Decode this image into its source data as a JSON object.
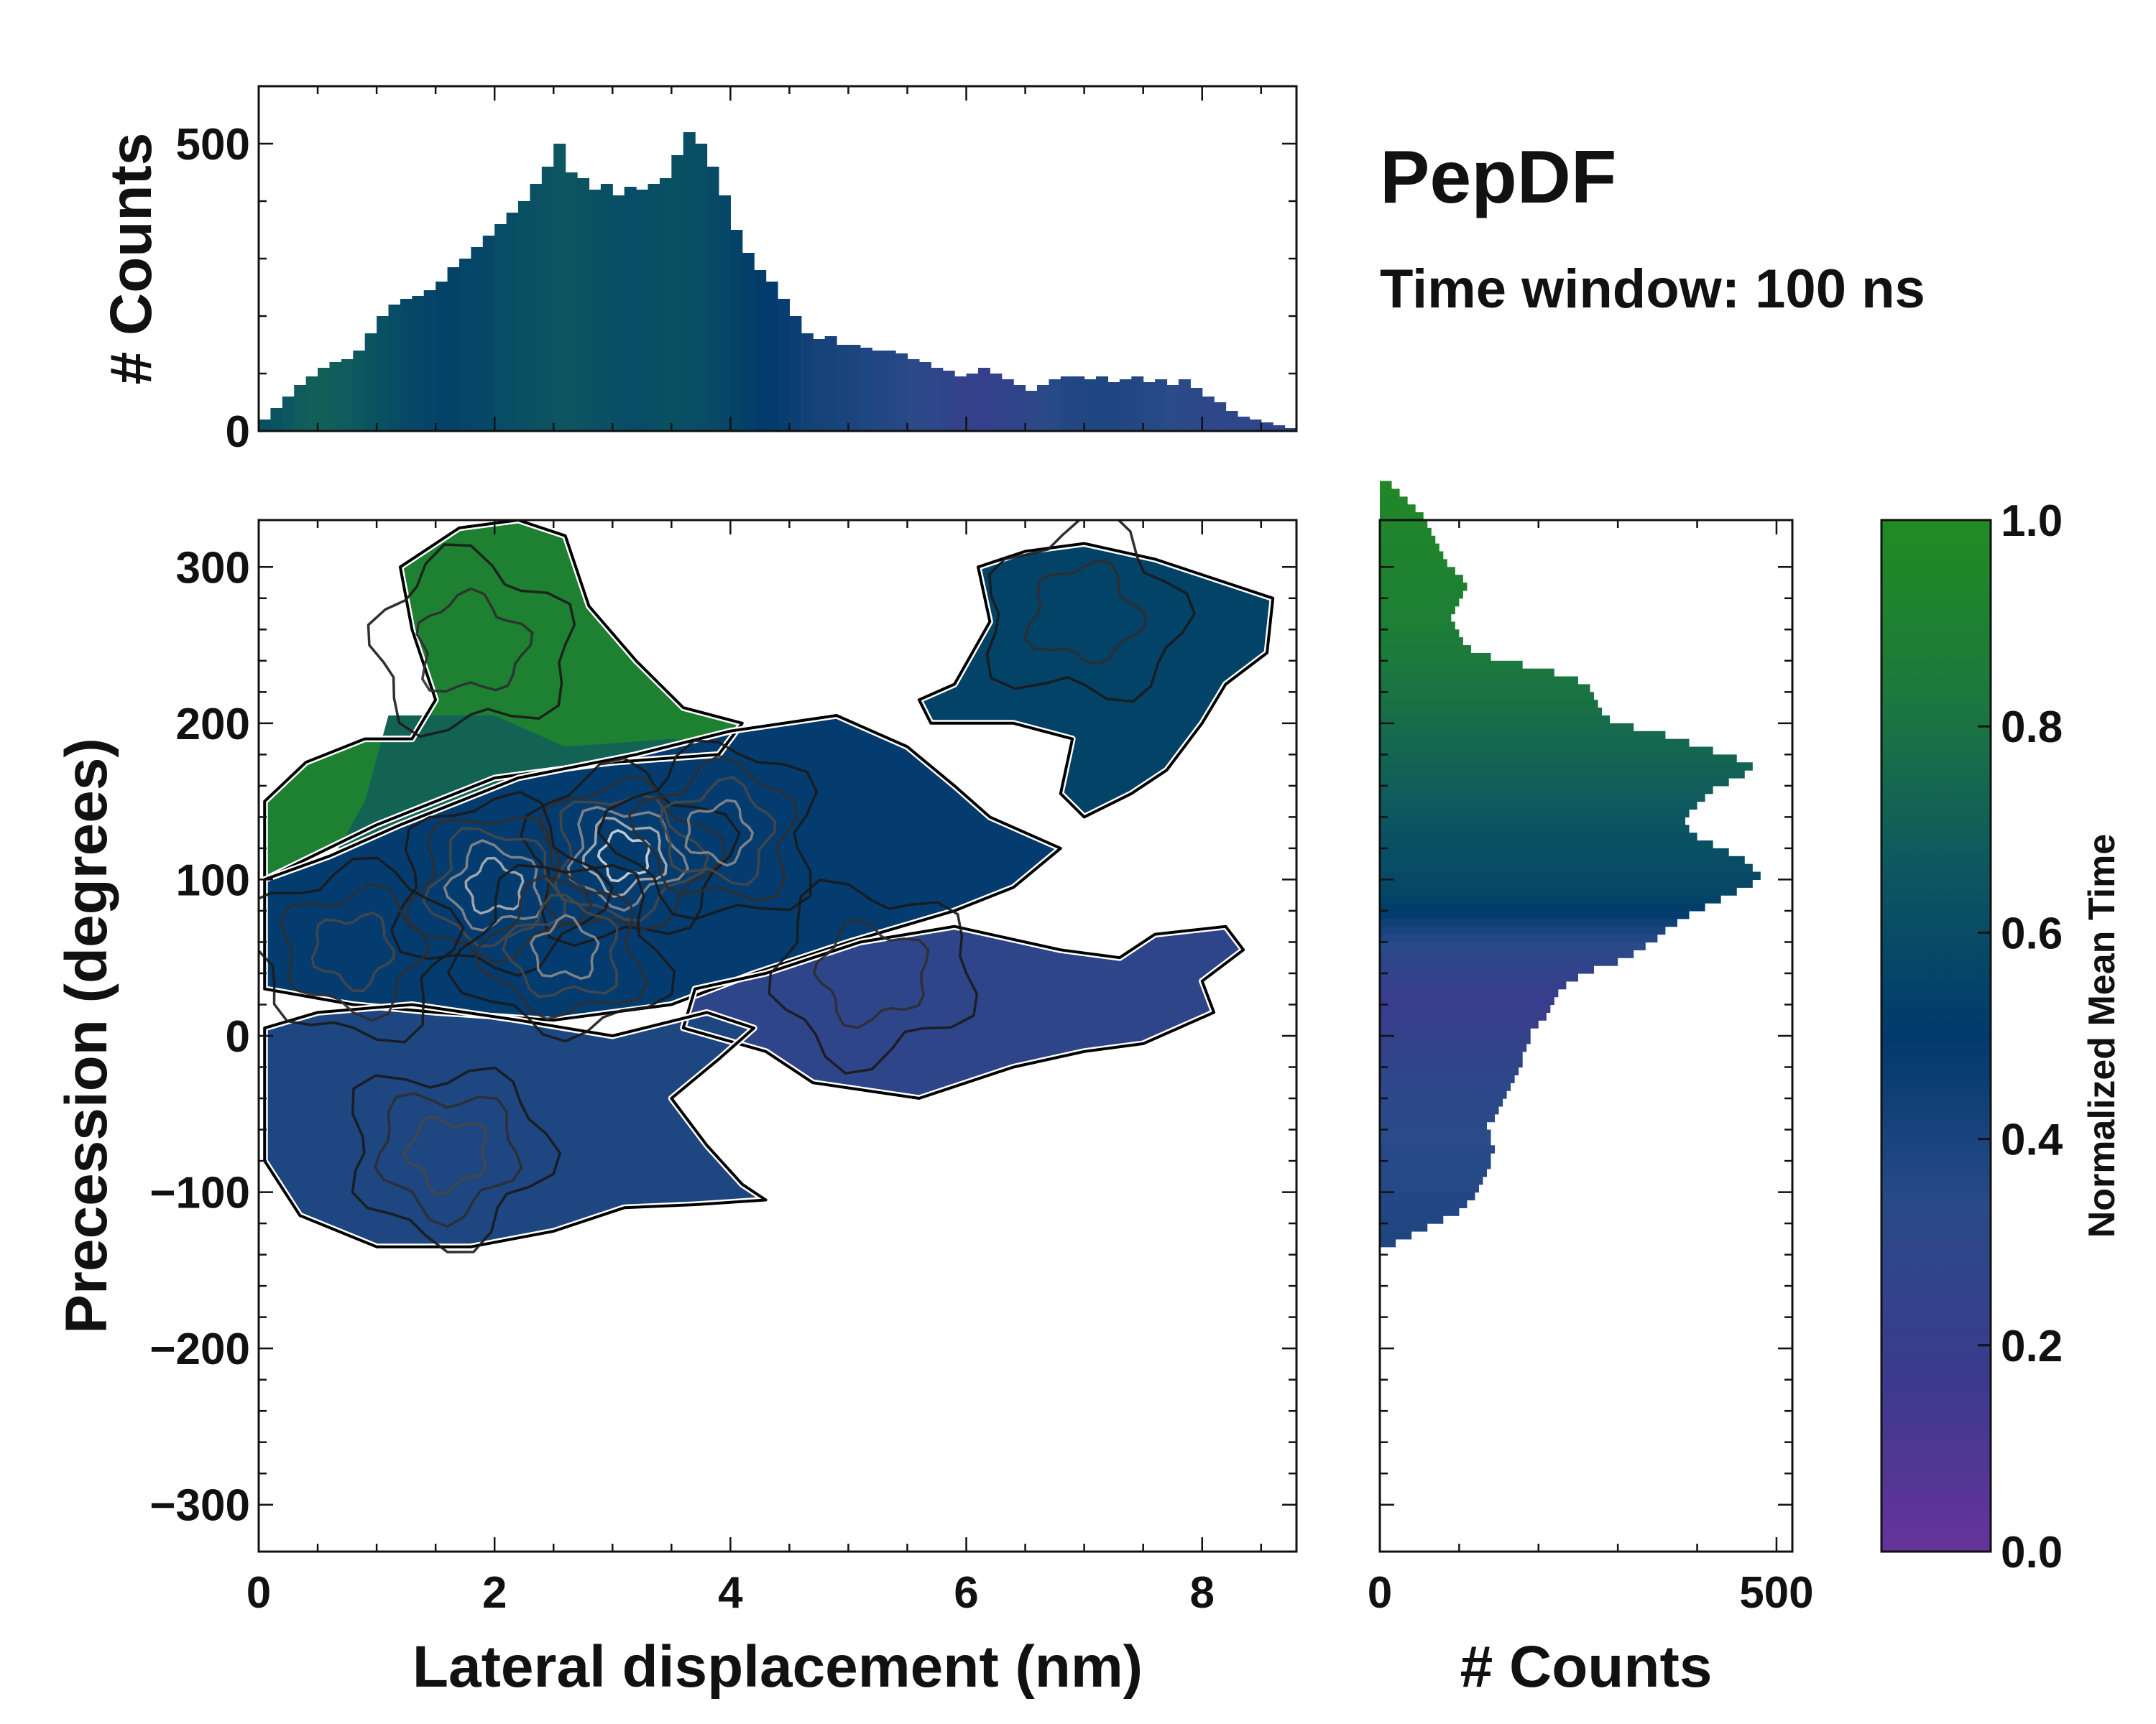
{
  "title": "PepDF",
  "subtitle": "Time window: 100 ns",
  "colors": {
    "stops": [
      "#66339a",
      "#3b3a8e",
      "#2a4a88",
      "#003a6c",
      "#0e5860",
      "#1c7a3c",
      "#228b22"
    ],
    "axis": "#111111",
    "outline": "#000000"
  },
  "chart_data": [
    {
      "id": "top-hist",
      "type": "bar",
      "title": "",
      "xlabel": "",
      "ylabel": "# Counts",
      "xlim": [
        0,
        8.8
      ],
      "ylim": [
        0,
        600
      ],
      "yticks": [
        0,
        500
      ],
      "bin_centers_start": 0.05,
      "bin_width": 0.1,
      "values": [
        20,
        40,
        60,
        80,
        95,
        110,
        120,
        125,
        140,
        170,
        200,
        220,
        230,
        235,
        245,
        260,
        285,
        300,
        320,
        340,
        360,
        380,
        400,
        430,
        460,
        500,
        450,
        440,
        420,
        430,
        410,
        425,
        420,
        430,
        440,
        480,
        520,
        500,
        460,
        410,
        350,
        310,
        280,
        260,
        230,
        200,
        170,
        160,
        165,
        150,
        150,
        145,
        140,
        140,
        135,
        125,
        120,
        110,
        105,
        95,
        100,
        110,
        100,
        90,
        80,
        70,
        80,
        90,
        95,
        95,
        90,
        95,
        85,
        90,
        95,
        85,
        90,
        80,
        90,
        75,
        60,
        50,
        35,
        25,
        20,
        15,
        10,
        5
      ],
      "time_color": [
        0.62,
        0.64,
        0.66,
        0.68,
        0.7,
        0.7,
        0.69,
        0.68,
        0.66,
        0.64,
        0.62,
        0.6,
        0.58,
        0.57,
        0.56,
        0.55,
        0.55,
        0.56,
        0.57,
        0.58,
        0.6,
        0.61,
        0.62,
        0.63,
        0.64,
        0.65,
        0.65,
        0.64,
        0.63,
        0.62,
        0.61,
        0.6,
        0.6,
        0.61,
        0.62,
        0.62,
        0.61,
        0.6,
        0.59,
        0.57,
        0.55,
        0.53,
        0.51,
        0.49,
        0.47,
        0.45,
        0.43,
        0.42,
        0.41,
        0.4,
        0.39,
        0.38,
        0.37,
        0.36,
        0.35,
        0.33,
        0.31,
        0.29,
        0.27,
        0.25,
        0.24,
        0.23,
        0.24,
        0.26,
        0.28,
        0.3,
        0.32,
        0.34,
        0.36,
        0.37,
        0.38,
        0.38,
        0.38,
        0.37,
        0.36,
        0.35,
        0.34,
        0.33,
        0.32,
        0.31,
        0.3,
        0.3,
        0.29,
        0.29,
        0.28,
        0.28,
        0.27,
        0.27
      ]
    },
    {
      "id": "main-2d-hist",
      "type": "heatmap",
      "title": "",
      "xlabel": "Lateral displacement (nm)",
      "ylabel": "Precession (degrees)",
      "xlim": [
        0,
        8.8
      ],
      "ylim": [
        -330,
        330
      ],
      "xticks": [
        0,
        2,
        4,
        6,
        8
      ],
      "yticks": [
        300,
        200,
        100,
        0,
        -100,
        -200,
        -300
      ],
      "ytick_labels": [
        "300",
        "200",
        "100",
        "0",
        "−100",
        "−200",
        "−300"
      ],
      "region_values": [
        0.9,
        0.55,
        0.72,
        0.48,
        0.28,
        0.38
      ],
      "regions": [
        {
          "name": "upper-left-green",
          "mean_time": 0.9
        },
        {
          "name": "upper-right-blue",
          "mean_time": 0.55
        },
        {
          "name": "central-mix",
          "mean_time": 0.72
        },
        {
          "name": "right-band-blue",
          "mean_time": 0.48
        },
        {
          "name": "right-band-purple",
          "mean_time": 0.28
        },
        {
          "name": "lower-left-indigo",
          "mean_time": 0.38
        }
      ],
      "density_peaks": [
        {
          "x": 3.1,
          "y": 115,
          "level": 6
        },
        {
          "x": 2.0,
          "y": 95,
          "level": 5
        },
        {
          "x": 2.6,
          "y": 55,
          "level": 4
        },
        {
          "x": 3.9,
          "y": 130,
          "level": 4
        },
        {
          "x": 0.8,
          "y": 55,
          "level": 3
        },
        {
          "x": 1.6,
          "y": -75,
          "level": 3
        },
        {
          "x": 5.2,
          "y": 40,
          "level": 2
        },
        {
          "x": 1.8,
          "y": 250,
          "level": 2
        },
        {
          "x": 7.0,
          "y": 270,
          "level": 2
        }
      ]
    },
    {
      "id": "right-hist",
      "type": "bar",
      "orientation": "horizontal",
      "xlabel": "# Counts",
      "ylabel": "",
      "xlim": [
        0,
        520
      ],
      "ylim": [
        -330,
        330
      ],
      "xticks": [
        0,
        500
      ],
      "bin_start": -135,
      "bin_width": 5,
      "values": [
        20,
        40,
        60,
        80,
        100,
        110,
        120,
        125,
        130,
        135,
        140,
        140,
        145,
        140,
        140,
        135,
        145,
        150,
        155,
        160,
        165,
        170,
        175,
        180,
        180,
        185,
        190,
        190,
        200,
        210,
        215,
        220,
        225,
        235,
        250,
        270,
        300,
        320,
        335,
        350,
        360,
        375,
        390,
        410,
        430,
        450,
        470,
        480,
        470,
        460,
        440,
        420,
        400,
        390,
        385,
        390,
        400,
        410,
        420,
        440,
        460,
        470,
        450,
        420,
        390,
        360,
        320,
        290,
        280,
        275,
        270,
        265,
        250,
        220,
        180,
        140,
        115,
        105,
        100,
        95,
        90,
        95,
        100,
        105,
        110,
        105,
        95,
        85,
        80,
        75,
        70,
        65,
        60,
        55,
        45,
        35,
        25,
        15
      ],
      "time_color": [
        0.38,
        0.38,
        0.37,
        0.37,
        0.36,
        0.36,
        0.36,
        0.35,
        0.35,
        0.35,
        0.34,
        0.34,
        0.34,
        0.33,
        0.33,
        0.33,
        0.32,
        0.32,
        0.31,
        0.31,
        0.3,
        0.29,
        0.28,
        0.27,
        0.26,
        0.25,
        0.24,
        0.23,
        0.22,
        0.21,
        0.2,
        0.2,
        0.21,
        0.22,
        0.24,
        0.26,
        0.28,
        0.3,
        0.33,
        0.36,
        0.4,
        0.44,
        0.48,
        0.52,
        0.55,
        0.57,
        0.58,
        0.59,
        0.6,
        0.6,
        0.61,
        0.62,
        0.63,
        0.64,
        0.65,
        0.66,
        0.67,
        0.68,
        0.69,
        0.7,
        0.71,
        0.72,
        0.73,
        0.74,
        0.74,
        0.75,
        0.76,
        0.77,
        0.78,
        0.79,
        0.8,
        0.8,
        0.81,
        0.82,
        0.83,
        0.84,
        0.84,
        0.85,
        0.86,
        0.87,
        0.88,
        0.88,
        0.89,
        0.89,
        0.9,
        0.9,
        0.91,
        0.91,
        0.92,
        0.92,
        0.93,
        0.93,
        0.94,
        0.94,
        0.95,
        0.95,
        0.96,
        0.96
      ]
    },
    {
      "id": "colorbar",
      "type": "colorbar",
      "label": "Normalized Mean Time",
      "range": [
        0,
        1
      ],
      "ticks": [
        0.0,
        0.2,
        0.4,
        0.6,
        0.8,
        1.0
      ],
      "tick_labels": [
        "0.0",
        "0.2",
        "0.4",
        "0.6",
        "0.8",
        "1.0"
      ]
    }
  ]
}
